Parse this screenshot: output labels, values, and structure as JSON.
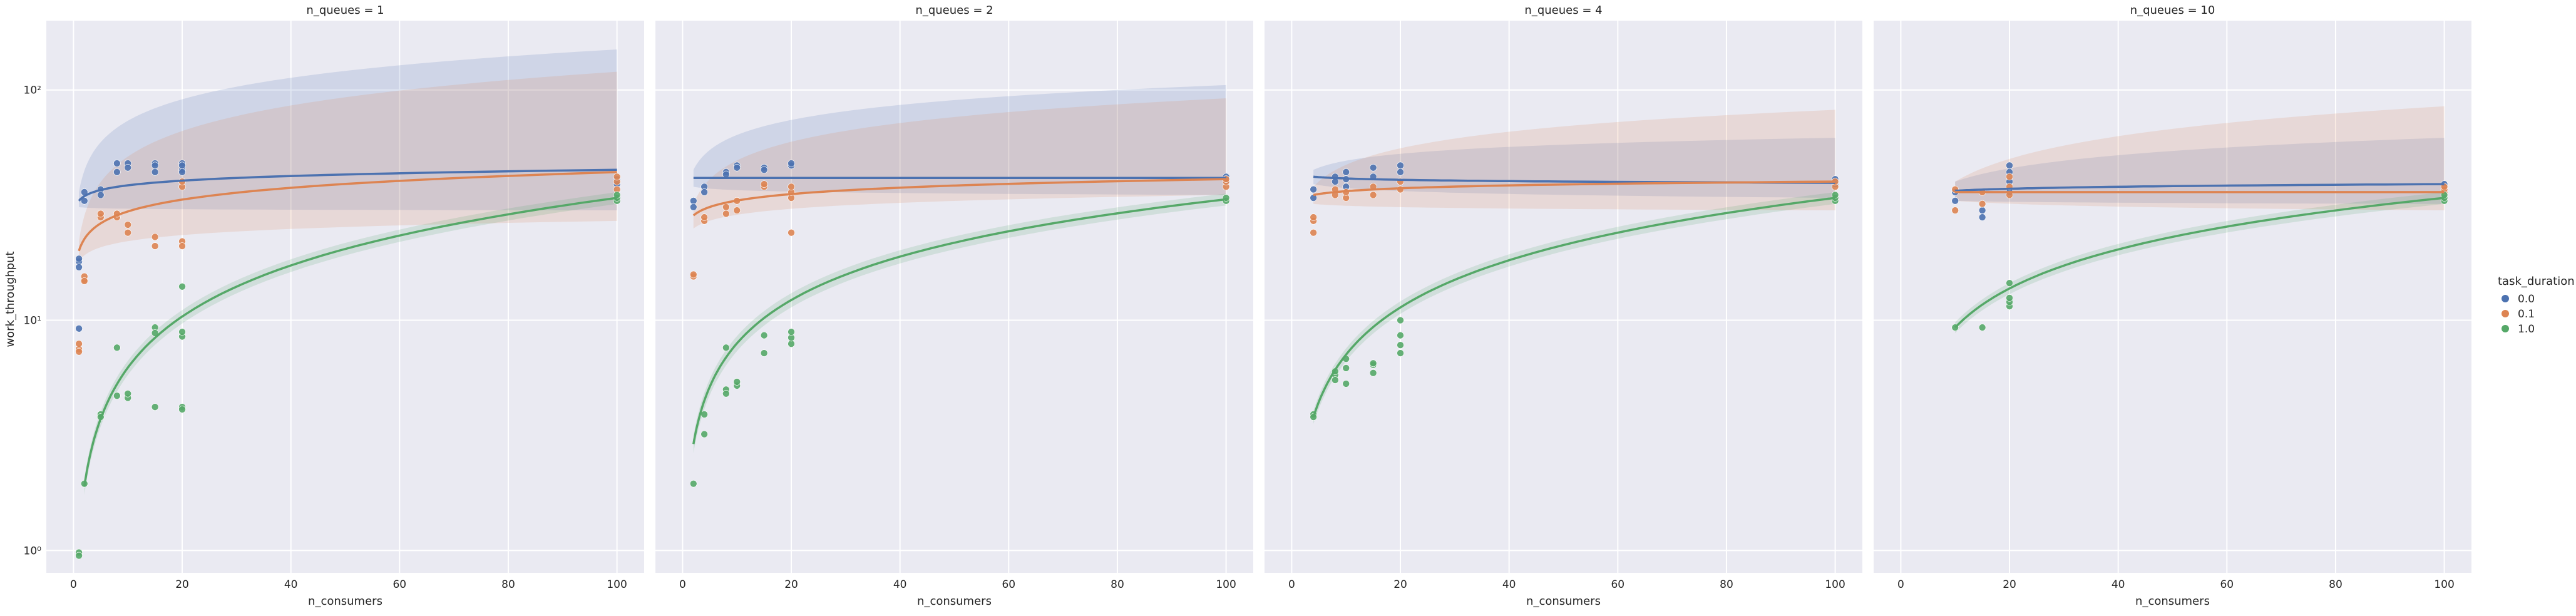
{
  "figure": {
    "ylabel": "work_throughput",
    "xlabel": "n_consumers",
    "legend_title": "task_duration",
    "legend_placement": "right"
  },
  "colors": {
    "0.0": "#4c72b0",
    "0.1": "#dd8452",
    "1.0": "#55a868",
    "axes_bg": "#eaeaf2",
    "grid": "#ffffff"
  },
  "chart_data": {
    "type": "scatter",
    "y_scale": "log",
    "ylim": [
      0.8,
      200
    ],
    "xlim": [
      -5,
      105
    ],
    "x_ticks": [
      0,
      20,
      40,
      60,
      80,
      100
    ],
    "y_ticks": [
      1,
      10,
      100
    ],
    "y_tick_labels": [
      "10⁰",
      "10¹",
      "10²"
    ],
    "grid": true,
    "fit": "log-linear regression with confidence band",
    "legend": {
      "title": "task_duration",
      "placement": "right",
      "entries": [
        {
          "label": "0.0",
          "color": "#4c72b0"
        },
        {
          "label": "0.1",
          "color": "#dd8452"
        },
        {
          "label": "1.0",
          "color": "#55a868"
        }
      ]
    },
    "panels": [
      {
        "title": "n_queues = 1",
        "series": [
          {
            "name": "0.0",
            "color": "#4c72b0",
            "points": [
              [
                1,
                18
              ],
              [
                1,
                18.5
              ],
              [
                1,
                17
              ],
              [
                1,
                9.2
              ],
              [
                2,
                33
              ],
              [
                2,
                36
              ],
              [
                5,
                37
              ],
              [
                5,
                35
              ],
              [
                8,
                48
              ],
              [
                8,
                44
              ],
              [
                10,
                48
              ],
              [
                10,
                46
              ],
              [
                15,
                48
              ],
              [
                15,
                44
              ],
              [
                15,
                47
              ],
              [
                20,
                48
              ],
              [
                20,
                45
              ],
              [
                20,
                47
              ],
              [
                20,
                44
              ],
              [
                100,
                40
              ],
              [
                100,
                41
              ],
              [
                100,
                39
              ]
            ],
            "fit": {
              "from": 1,
              "to": 100,
              "a": 33,
              "b": 45
            },
            "band": {
              "lo_start": 31,
              "lo_end": 30,
              "hi_start": 36,
              "hi_end": 150
            }
          },
          {
            "name": "0.1",
            "color": "#dd8452",
            "points": [
              [
                1,
                7.5
              ],
              [
                1,
                7.9
              ],
              [
                1,
                7.3
              ],
              [
                2,
                15
              ],
              [
                2,
                15.5
              ],
              [
                2,
                14.8
              ],
              [
                5,
                28
              ],
              [
                5,
                29
              ],
              [
                8,
                28
              ],
              [
                8,
                29
              ],
              [
                10,
                24
              ],
              [
                10,
                26
              ],
              [
                15,
                21
              ],
              [
                15,
                23
              ],
              [
                20,
                22
              ],
              [
                20,
                21
              ],
              [
                20,
                38
              ],
              [
                20,
                40
              ],
              [
                100,
                37
              ],
              [
                100,
                40
              ],
              [
                100,
                42
              ]
            ],
            "fit": {
              "from": 1,
              "to": 100,
              "a": 20,
              "b": 44
            },
            "band": {
              "lo_start": 18,
              "lo_end": 27,
              "hi_start": 22,
              "hi_end": 120
            }
          },
          {
            "name": "1.0",
            "color": "#55a868",
            "points": [
              [
                1,
                0.98
              ],
              [
                1,
                0.95
              ],
              [
                2,
                1.95
              ],
              [
                5,
                3.9
              ],
              [
                5,
                3.8
              ],
              [
                8,
                4.7
              ],
              [
                8,
                7.6
              ],
              [
                10,
                4.6
              ],
              [
                10,
                4.8
              ],
              [
                15,
                9.3
              ],
              [
                15,
                8.8
              ],
              [
                15,
                4.2
              ],
              [
                20,
                8.5
              ],
              [
                20,
                8.9
              ],
              [
                20,
                14
              ],
              [
                20,
                4.2
              ],
              [
                20,
                4.1
              ],
              [
                100,
                33
              ],
              [
                100,
                34
              ],
              [
                100,
                35
              ]
            ],
            "fit": {
              "from": 2,
              "to": 100,
              "a": 1.9,
              "b": 34
            },
            "band": {
              "lo_start": 1.75,
              "lo_end": 32,
              "hi_start": 2.05,
              "hi_end": 36
            }
          }
        ]
      },
      {
        "title": "n_queues = 2",
        "series": [
          {
            "name": "0.0",
            "color": "#4c72b0",
            "points": [
              [
                2,
                33
              ],
              [
                2,
                31
              ],
              [
                4,
                38
              ],
              [
                4,
                36
              ],
              [
                8,
                44
              ],
              [
                8,
                43
              ],
              [
                10,
                47
              ],
              [
                10,
                46
              ],
              [
                15,
                46
              ],
              [
                15,
                45
              ],
              [
                20,
                47
              ],
              [
                20,
                48
              ],
              [
                100,
                40
              ],
              [
                100,
                42
              ],
              [
                100,
                41
              ]
            ],
            "fit": {
              "from": 2,
              "to": 100,
              "a": 41.5,
              "b": 41.5
            },
            "band": {
              "lo_start": 38,
              "lo_end": 35,
              "hi_start": 45,
              "hi_end": 105
            }
          },
          {
            "name": "0.1",
            "color": "#dd8452",
            "points": [
              [
                2,
                15.5
              ],
              [
                2,
                15.8
              ],
              [
                4,
                27
              ],
              [
                4,
                28
              ],
              [
                8,
                29
              ],
              [
                8,
                31
              ],
              [
                10,
                30
              ],
              [
                10,
                33
              ],
              [
                15,
                38
              ],
              [
                15,
                39
              ],
              [
                20,
                24
              ],
              [
                20,
                34
              ],
              [
                20,
                36
              ],
              [
                20,
                38
              ],
              [
                100,
                38
              ],
              [
                100,
                40
              ],
              [
                100,
                41
              ]
            ],
            "fit": {
              "from": 2,
              "to": 100,
              "a": 28.5,
              "b": 41
            },
            "band": {
              "lo_start": 25,
              "lo_end": 35,
              "hi_start": 32,
              "hi_end": 92
            }
          },
          {
            "name": "1.0",
            "color": "#55a868",
            "points": [
              [
                2,
                1.95
              ],
              [
                4,
                3.2
              ],
              [
                4,
                3.9
              ],
              [
                8,
                7.6
              ],
              [
                8,
                5
              ],
              [
                8,
                4.8
              ],
              [
                10,
                5.2
              ],
              [
                10,
                5.4
              ],
              [
                15,
                8.6
              ],
              [
                15,
                7.2
              ],
              [
                20,
                7.9
              ],
              [
                20,
                8.4
              ],
              [
                20,
                8.9
              ],
              [
                100,
                33
              ],
              [
                100,
                34
              ]
            ],
            "fit": {
              "from": 2,
              "to": 100,
              "a": 2.9,
              "b": 33.5
            },
            "band": {
              "lo_start": 2.65,
              "lo_end": 31.5,
              "hi_start": 3.15,
              "hi_end": 35.5
            }
          }
        ]
      },
      {
        "title": "n_queues = 4",
        "series": [
          {
            "name": "0.0",
            "color": "#4c72b0",
            "points": [
              [
                4,
                37
              ],
              [
                4,
                34
              ],
              [
                8,
                42
              ],
              [
                8,
                40
              ],
              [
                10,
                44
              ],
              [
                10,
                41
              ],
              [
                10,
                38
              ],
              [
                15,
                46
              ],
              [
                15,
                42
              ],
              [
                20,
                47
              ],
              [
                20,
                44
              ],
              [
                100,
                40
              ],
              [
                100,
                41
              ],
              [
                100,
                39
              ]
            ],
            "fit": {
              "from": 4,
              "to": 100,
              "a": 42,
              "b": 39.5
            },
            "band": {
              "lo_start": 39,
              "lo_end": 34,
              "hi_start": 45,
              "hi_end": 62
            }
          },
          {
            "name": "0.1",
            "color": "#dd8452",
            "points": [
              [
                4,
                27
              ],
              [
                4,
                28
              ],
              [
                4,
                24
              ],
              [
                8,
                35
              ],
              [
                8,
                37
              ],
              [
                10,
                34
              ],
              [
                10,
                36
              ],
              [
                15,
                38
              ],
              [
                15,
                35
              ],
              [
                20,
                37
              ],
              [
                20,
                40
              ],
              [
                100,
                38
              ],
              [
                100,
                40
              ]
            ],
            "fit": {
              "from": 4,
              "to": 100,
              "a": 35,
              "b": 40
            },
            "band": {
              "lo_start": 32,
              "lo_end": 30,
              "hi_start": 38,
              "hi_end": 82
            }
          },
          {
            "name": "1.0",
            "color": "#55a868",
            "points": [
              [
                4,
                3.9
              ],
              [
                4,
                3.8
              ],
              [
                8,
                5.8
              ],
              [
                8,
                5.5
              ],
              [
                8,
                6.0
              ],
              [
                10,
                6.8
              ],
              [
                10,
                5.3
              ],
              [
                10,
                6.2
              ],
              [
                15,
                6.4
              ],
              [
                15,
                6.5
              ],
              [
                15,
                5.9
              ],
              [
                20,
                7.2
              ],
              [
                20,
                7.8
              ],
              [
                20,
                8.6
              ],
              [
                20,
                10
              ],
              [
                100,
                33
              ],
              [
                100,
                34
              ],
              [
                100,
                35
              ]
            ],
            "fit": {
              "from": 4,
              "to": 100,
              "a": 3.8,
              "b": 34
            },
            "band": {
              "lo_start": 3.55,
              "lo_end": 32,
              "hi_start": 4.05,
              "hi_end": 36
            }
          }
        ]
      },
      {
        "title": "n_queues = 10",
        "series": [
          {
            "name": "0.0",
            "color": "#4c72b0",
            "points": [
              [
                10,
                33
              ],
              [
                10,
                36
              ],
              [
                15,
                28
              ],
              [
                15,
                30
              ],
              [
                20,
                36
              ],
              [
                20,
                40
              ],
              [
                20,
                44
              ],
              [
                20,
                47
              ],
              [
                100,
                37
              ],
              [
                100,
                39
              ]
            ],
            "fit": {
              "from": 10,
              "to": 100,
              "a": 36.5,
              "b": 39
            },
            "band": {
              "lo_start": 33,
              "lo_end": 32,
              "hi_start": 40,
              "hi_end": 62
            }
          },
          {
            "name": "0.1",
            "color": "#dd8452",
            "points": [
              [
                10,
                30
              ],
              [
                10,
                37
              ],
              [
                15,
                32
              ],
              [
                15,
                36
              ],
              [
                20,
                35
              ],
              [
                20,
                38
              ],
              [
                20,
                42
              ],
              [
                100,
                36
              ],
              [
                100,
                37
              ],
              [
                100,
                38
              ]
            ],
            "fit": {
              "from": 10,
              "to": 100,
              "a": 36,
              "b": 36
            },
            "band": {
              "lo_start": 33,
              "lo_end": 30,
              "hi_start": 40,
              "hi_end": 85
            }
          },
          {
            "name": "1.0",
            "color": "#55a868",
            "points": [
              [
                10,
                9.3
              ],
              [
                15,
                9.3
              ],
              [
                20,
                11.5
              ],
              [
                20,
                12
              ],
              [
                20,
                12.5
              ],
              [
                20,
                14.5
              ],
              [
                100,
                33
              ],
              [
                100,
                34
              ],
              [
                100,
                35
              ]
            ],
            "fit": {
              "from": 10,
              "to": 100,
              "a": 9.3,
              "b": 34
            },
            "band": {
              "lo_start": 8.8,
              "lo_end": 32,
              "hi_start": 9.8,
              "hi_end": 36
            }
          }
        ]
      }
    ]
  }
}
